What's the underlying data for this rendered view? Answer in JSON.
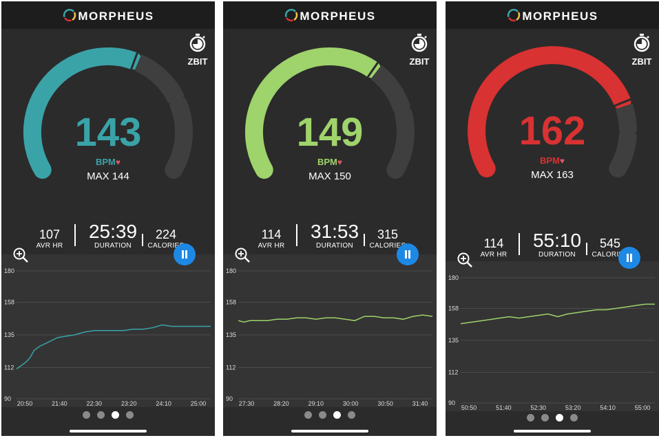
{
  "app": {
    "name": "MORPHEUS",
    "timer_label": "ZBIT",
    "bpm_unit": "BPM"
  },
  "screens": [
    {
      "bpm": "143",
      "max": "MAX 144",
      "color": "#3aa3a8",
      "avr_hr": "107",
      "duration": "25:39",
      "calories": "224",
      "gauge_fill": 0.58
    },
    {
      "bpm": "149",
      "max": "MAX 150",
      "color": "#9fd36b",
      "avr_hr": "114",
      "duration": "31:53",
      "calories": "315",
      "gauge_fill": 0.64
    },
    {
      "bpm": "162",
      "max": "MAX 163",
      "color": "#d83232",
      "avr_hr": "114",
      "duration": "55:10",
      "calories": "545",
      "gauge_fill": 0.78
    }
  ],
  "labels": {
    "avr_hr": "AVR HR",
    "duration": "DURATION",
    "calories": "CALORIES"
  },
  "pager": {
    "count": 4,
    "active_index": 2
  },
  "chart_data": [
    {
      "type": "line",
      "ylim": [
        90,
        180
      ],
      "y_ticks": [
        "180",
        "158",
        "135",
        "112",
        "90"
      ],
      "x_ticks": [
        "20:50",
        "21:40",
        "22:30",
        "23:20",
        "24:10",
        "25:00"
      ],
      "series": [
        {
          "color": "#3aa3a8",
          "x": [
            0,
            0.02,
            0.05,
            0.07,
            0.09,
            0.12,
            0.15,
            0.18,
            0.21,
            0.25,
            0.3,
            0.35,
            0.4,
            0.45,
            0.5,
            0.55,
            0.6,
            0.65,
            0.7,
            0.75,
            0.8,
            0.85,
            0.9,
            0.95,
            1.0
          ],
          "y": [
            111,
            113,
            116,
            119,
            124,
            127,
            129,
            131,
            133,
            134,
            135,
            137,
            138,
            138,
            138,
            138,
            139,
            139,
            140,
            142,
            141,
            141,
            141,
            141,
            141
          ]
        }
      ]
    },
    {
      "type": "line",
      "ylim": [
        90,
        180
      ],
      "y_ticks": [
        "180",
        "158",
        "135",
        "112",
        "90"
      ],
      "x_ticks": [
        "27:30",
        "28:20",
        "29:10",
        "30:00",
        "30:50",
        "31:40"
      ],
      "series": [
        {
          "color": "#9fd36b",
          "x": [
            0,
            0.03,
            0.06,
            0.1,
            0.15,
            0.2,
            0.25,
            0.3,
            0.35,
            0.4,
            0.45,
            0.5,
            0.55,
            0.6,
            0.65,
            0.7,
            0.75,
            0.8,
            0.85,
            0.9,
            0.95,
            1.0
          ],
          "y": [
            145,
            144,
            145,
            145,
            145,
            146,
            146,
            147,
            147,
            146,
            147,
            147,
            146,
            145,
            148,
            148,
            147,
            147,
            146,
            148,
            149,
            148
          ]
        }
      ]
    },
    {
      "type": "line",
      "ylim": [
        90,
        180
      ],
      "y_ticks": [
        "180",
        "158",
        "135",
        "112",
        "90"
      ],
      "x_ticks": [
        "50:50",
        "51:40",
        "52:30",
        "53:20",
        "54:10",
        "55:00"
      ],
      "series": [
        {
          "color": "#9fd36b",
          "x": [
            0,
            0.05,
            0.1,
            0.15,
            0.2,
            0.25,
            0.3,
            0.35,
            0.4,
            0.45,
            0.5,
            0.55,
            0.6,
            0.65,
            0.7,
            0.75,
            0.8,
            0.85,
            0.9,
            0.95,
            1.0
          ],
          "y": [
            147,
            148,
            149,
            150,
            151,
            152,
            151,
            152,
            153,
            154,
            152,
            154,
            155,
            156,
            157,
            157,
            158,
            159,
            160,
            161,
            161
          ]
        }
      ]
    }
  ]
}
